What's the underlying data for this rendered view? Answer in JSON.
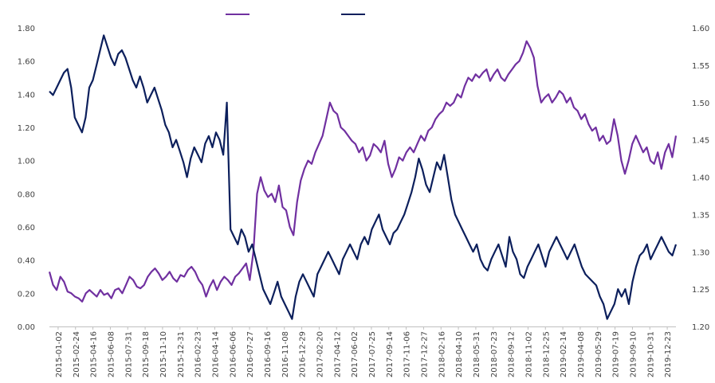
{
  "chart_data": {
    "type": "line",
    "title": "",
    "xlabel": "",
    "ylabel": "",
    "legend_position": "top",
    "grid": false,
    "x_tick_labels": [
      "2015-01-02",
      "2015-02-24",
      "2015-04-16",
      "2015-06-08",
      "2015-07-31",
      "2015-09-18",
      "2015-11-10",
      "2015-12-31",
      "2016-02-23",
      "2016-04-14",
      "2016-06-06",
      "2016-07-27",
      "2016-09-16",
      "2016-11-08",
      "2016-12-29",
      "2017-02-20",
      "2017-04-12",
      "2017-06-02",
      "2017-07-25",
      "2017-09-14",
      "2017-11-06",
      "2017-12-27",
      "2018-02-16",
      "2018-04-10",
      "2018-05-31",
      "2018-07-23",
      "2018-09-12",
      "2018-11-02",
      "2018-12-25",
      "2019-02-14",
      "2019-04-08",
      "2019-05-29",
      "2019-07-19",
      "2019-09-10",
      "2019-10-31",
      "2019-12-23"
    ],
    "y_left": {
      "min": 0,
      "max": 1.8,
      "ticks": [
        "0.00",
        "0.20",
        "0.40",
        "0.60",
        "0.80",
        "1.00",
        "1.20",
        "1.40",
        "1.60",
        "1.80"
      ]
    },
    "y_right": {
      "min": 1.2,
      "max": 1.6,
      "ticks": [
        "1.20",
        "1.25",
        "1.30",
        "1.35",
        "1.40",
        "1.45",
        "1.50",
        "1.55",
        "1.60"
      ]
    },
    "series": [
      {
        "name": "",
        "axis": "left",
        "color": "#7030a0",
        "values": [
          0.33,
          0.25,
          0.22,
          0.3,
          0.27,
          0.21,
          0.2,
          0.18,
          0.17,
          0.15,
          0.2,
          0.22,
          0.2,
          0.18,
          0.22,
          0.19,
          0.2,
          0.17,
          0.22,
          0.23,
          0.2,
          0.25,
          0.3,
          0.28,
          0.24,
          0.23,
          0.25,
          0.3,
          0.33,
          0.35,
          0.32,
          0.28,
          0.3,
          0.33,
          0.29,
          0.27,
          0.31,
          0.3,
          0.34,
          0.36,
          0.33,
          0.28,
          0.25,
          0.18,
          0.24,
          0.28,
          0.22,
          0.27,
          0.3,
          0.28,
          0.25,
          0.3,
          0.32,
          0.35,
          0.38,
          0.28,
          0.45,
          0.8,
          0.9,
          0.82,
          0.78,
          0.8,
          0.75,
          0.85,
          0.72,
          0.7,
          0.6,
          0.55,
          0.75,
          0.88,
          0.95,
          1.0,
          0.98,
          1.05,
          1.1,
          1.15,
          1.25,
          1.35,
          1.3,
          1.28,
          1.2,
          1.18,
          1.15,
          1.12,
          1.1,
          1.05,
          1.08,
          1.0,
          1.03,
          1.1,
          1.08,
          1.05,
          1.12,
          0.98,
          0.9,
          0.95,
          1.02,
          1.0,
          1.05,
          1.08,
          1.05,
          1.1,
          1.15,
          1.12,
          1.18,
          1.2,
          1.25,
          1.28,
          1.3,
          1.35,
          1.33,
          1.35,
          1.4,
          1.38,
          1.45,
          1.5,
          1.48,
          1.52,
          1.5,
          1.53,
          1.55,
          1.48,
          1.52,
          1.55,
          1.5,
          1.48,
          1.52,
          1.55,
          1.58,
          1.6,
          1.65,
          1.72,
          1.68,
          1.62,
          1.45,
          1.35,
          1.38,
          1.4,
          1.35,
          1.38,
          1.42,
          1.4,
          1.35,
          1.38,
          1.32,
          1.3,
          1.25,
          1.28,
          1.22,
          1.18,
          1.2,
          1.12,
          1.15,
          1.1,
          1.12,
          1.25,
          1.15,
          1.0,
          0.92,
          1.0,
          1.1,
          1.15,
          1.1,
          1.05,
          1.08,
          1.0,
          0.98,
          1.05,
          0.95,
          1.05,
          1.1,
          1.02,
          1.15
        ]
      },
      {
        "name": "",
        "axis": "right",
        "color": "#0c1f5c",
        "values": [
          1.515,
          1.51,
          1.52,
          1.53,
          1.54,
          1.545,
          1.52,
          1.48,
          1.47,
          1.46,
          1.48,
          1.52,
          1.53,
          1.55,
          1.57,
          1.59,
          1.575,
          1.56,
          1.55,
          1.565,
          1.57,
          1.56,
          1.545,
          1.53,
          1.52,
          1.535,
          1.52,
          1.5,
          1.51,
          1.52,
          1.505,
          1.49,
          1.47,
          1.46,
          1.44,
          1.45,
          1.435,
          1.42,
          1.4,
          1.425,
          1.44,
          1.43,
          1.42,
          1.445,
          1.455,
          1.44,
          1.46,
          1.45,
          1.43,
          1.5,
          1.33,
          1.32,
          1.31,
          1.33,
          1.32,
          1.3,
          1.31,
          1.29,
          1.27,
          1.25,
          1.24,
          1.23,
          1.245,
          1.26,
          1.24,
          1.23,
          1.22,
          1.21,
          1.24,
          1.26,
          1.27,
          1.26,
          1.25,
          1.24,
          1.27,
          1.28,
          1.29,
          1.3,
          1.29,
          1.28,
          1.27,
          1.29,
          1.3,
          1.31,
          1.3,
          1.29,
          1.31,
          1.32,
          1.31,
          1.33,
          1.34,
          1.35,
          1.33,
          1.32,
          1.31,
          1.325,
          1.33,
          1.34,
          1.35,
          1.365,
          1.38,
          1.4,
          1.425,
          1.41,
          1.39,
          1.38,
          1.4,
          1.42,
          1.41,
          1.43,
          1.4,
          1.37,
          1.35,
          1.34,
          1.33,
          1.32,
          1.31,
          1.3,
          1.31,
          1.29,
          1.28,
          1.275,
          1.29,
          1.3,
          1.31,
          1.295,
          1.28,
          1.32,
          1.3,
          1.29,
          1.27,
          1.265,
          1.28,
          1.29,
          1.3,
          1.31,
          1.295,
          1.28,
          1.3,
          1.31,
          1.32,
          1.31,
          1.3,
          1.29,
          1.3,
          1.31,
          1.295,
          1.28,
          1.27,
          1.265,
          1.26,
          1.255,
          1.24,
          1.23,
          1.21,
          1.22,
          1.23,
          1.25,
          1.24,
          1.25,
          1.23,
          1.26,
          1.28,
          1.295,
          1.3,
          1.31,
          1.29,
          1.3,
          1.31,
          1.32,
          1.31,
          1.3,
          1.295,
          1.31
        ]
      }
    ]
  }
}
